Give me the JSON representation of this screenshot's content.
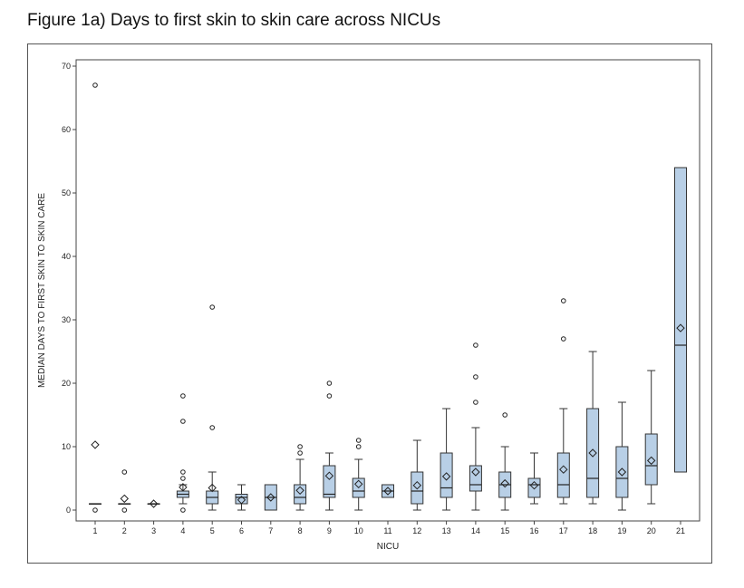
{
  "figure": {
    "title": "Figure 1a) Days to first skin to skin care across NICUs"
  },
  "chart_data": {
    "type": "box",
    "xlabel": "NICU",
    "ylabel": "MEDIAN DAYS TO FIRST SKIN TO SKIN CARE",
    "ylim": [
      0,
      70
    ],
    "yticks": [
      0,
      10,
      20,
      30,
      40,
      50,
      60,
      70
    ],
    "grid": false,
    "legend": "none",
    "box_color": "#b8cfe6",
    "categories": [
      "1",
      "2",
      "3",
      "4",
      "5",
      "6",
      "7",
      "8",
      "9",
      "10",
      "11",
      "12",
      "13",
      "14",
      "15",
      "16",
      "17",
      "18",
      "19",
      "20",
      "21"
    ],
    "boxes": [
      {
        "category": "1",
        "min": 1,
        "q1": 1,
        "median": 1,
        "q3": 1,
        "max": 1,
        "mean": 10.3,
        "outliers": [
          67,
          0
        ]
      },
      {
        "category": "2",
        "min": 1,
        "q1": 1,
        "median": 1,
        "q3": 1,
        "max": 1,
        "mean": 1.8,
        "outliers": [
          6,
          0
        ]
      },
      {
        "category": "3",
        "min": 1,
        "q1": 1,
        "median": 1,
        "q3": 1,
        "max": 1,
        "mean": 1,
        "outliers": []
      },
      {
        "category": "4",
        "min": 1,
        "q1": 2,
        "median": 2.5,
        "q3": 3,
        "max": 4,
        "mean": 3.6,
        "outliers": [
          18,
          14,
          6,
          5,
          0
        ]
      },
      {
        "category": "5",
        "min": 0,
        "q1": 1,
        "median": 2,
        "q3": 3,
        "max": 6,
        "mean": 3.5,
        "outliers": [
          32,
          13
        ]
      },
      {
        "category": "6",
        "min": 0,
        "q1": 1,
        "median": 2,
        "q3": 2.5,
        "max": 4,
        "mean": 1.6,
        "outliers": []
      },
      {
        "category": "7",
        "min": 0,
        "q1": 0,
        "median": 2,
        "q3": 4,
        "max": 4,
        "mean": 2,
        "outliers": []
      },
      {
        "category": "8",
        "min": 0,
        "q1": 1,
        "median": 2,
        "q3": 4,
        "max": 8,
        "mean": 3.1,
        "outliers": [
          10,
          9
        ]
      },
      {
        "category": "9",
        "min": 0,
        "q1": 2,
        "median": 2.5,
        "q3": 7,
        "max": 9,
        "mean": 5.4,
        "outliers": [
          20,
          18
        ]
      },
      {
        "category": "10",
        "min": 0,
        "q1": 2,
        "median": 3,
        "q3": 5,
        "max": 8,
        "mean": 4.1,
        "outliers": [
          11,
          10
        ]
      },
      {
        "category": "11",
        "min": 2,
        "q1": 2,
        "median": 3,
        "q3": 4,
        "max": 4,
        "mean": 3,
        "outliers": []
      },
      {
        "category": "12",
        "min": 0,
        "q1": 1,
        "median": 3,
        "q3": 6,
        "max": 11,
        "mean": 3.9,
        "outliers": []
      },
      {
        "category": "13",
        "min": 0,
        "q1": 2,
        "median": 3.5,
        "q3": 9,
        "max": 16,
        "mean": 5.3,
        "outliers": []
      },
      {
        "category": "14",
        "min": 0,
        "q1": 3,
        "median": 4,
        "q3": 7,
        "max": 13,
        "mean": 6,
        "outliers": [
          26,
          21,
          17
        ]
      },
      {
        "category": "15",
        "min": 0,
        "q1": 2,
        "median": 4,
        "q3": 6,
        "max": 10,
        "mean": 4.2,
        "outliers": [
          15
        ]
      },
      {
        "category": "16",
        "min": 1,
        "q1": 2,
        "median": 4,
        "q3": 5,
        "max": 9,
        "mean": 3.9,
        "outliers": []
      },
      {
        "category": "17",
        "min": 1,
        "q1": 2,
        "median": 4,
        "q3": 9,
        "max": 16,
        "mean": 6.4,
        "outliers": [
          33,
          27
        ]
      },
      {
        "category": "18",
        "min": 1,
        "q1": 2,
        "median": 5,
        "q3": 16,
        "max": 25,
        "mean": 9,
        "outliers": []
      },
      {
        "category": "19",
        "min": 0,
        "q1": 2,
        "median": 5,
        "q3": 10,
        "max": 17,
        "mean": 6,
        "outliers": []
      },
      {
        "category": "20",
        "min": 1,
        "q1": 4,
        "median": 7,
        "q3": 12,
        "max": 22,
        "mean": 7.8,
        "outliers": []
      },
      {
        "category": "21",
        "min": 6,
        "q1": 6,
        "median": 26,
        "q3": 54,
        "max": 54,
        "mean": 28.7,
        "outliers": []
      }
    ]
  }
}
